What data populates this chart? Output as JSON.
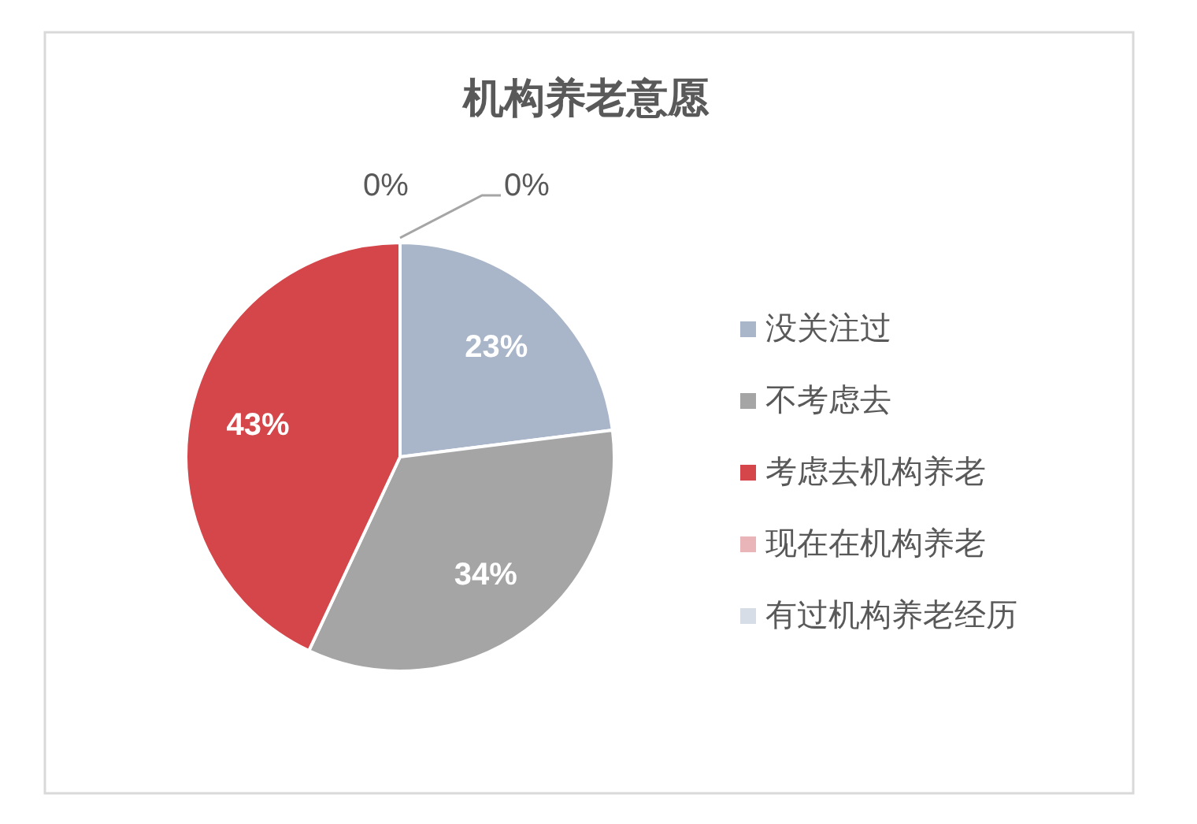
{
  "chart_data": {
    "type": "pie",
    "title": "机构养老意愿",
    "categories": [
      "没关注过",
      "不考虑去",
      "考虑去机构养老",
      "现在在机构养老",
      "有过机构养老经历"
    ],
    "values": [
      23,
      34,
      43,
      0,
      0
    ],
    "colors": [
      "#a9b5c9",
      "#a5a5a5",
      "#d4464a",
      "#e9b5b8",
      "#d7dde6"
    ],
    "value_labels": [
      "23%",
      "34%",
      "43%",
      "0%",
      "0%"
    ],
    "legend": "right"
  }
}
